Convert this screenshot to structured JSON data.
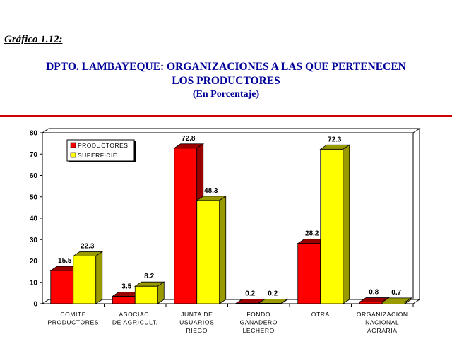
{
  "figure_label": "Gráfico  1.12:",
  "title_line1": "DPTO. LAMBAYEQUE: ORGANIZACIONES A LAS QUE PERTENECEN",
  "title_line2": "LOS PRODUCTORES",
  "title_line3": "(En Porcentaje)",
  "colors": {
    "productores": "#ff0000",
    "productores_dark": "#990000",
    "superficie": "#ffff00",
    "superficie_dark": "#999900",
    "title": "#000099",
    "rule": "#cc0000"
  },
  "chart_data": {
    "type": "bar",
    "categories": [
      [
        "COMITE",
        "PRODUCTORES"
      ],
      [
        "ASOCIAC.",
        "DE AGRICULT."
      ],
      [
        "JUNTA DE",
        "USUARIOS",
        "RIEGO"
      ],
      [
        "FONDO",
        "GANADERO",
        "LECHERO"
      ],
      [
        "OTRA"
      ],
      [
        "ORGANIZACION",
        "NACIONAL",
        "AGRARIA"
      ]
    ],
    "series": [
      {
        "name": "PRODUCTORES",
        "values": [
          15.5,
          3.5,
          72.8,
          0.2,
          28.2,
          0.8
        ],
        "labels": [
          "15.5",
          "3.5",
          "72.8",
          "0.2",
          "28.2",
          "0.8"
        ]
      },
      {
        "name": "SUPERFICIE",
        "values": [
          22.3,
          8.2,
          48.3,
          0.2,
          72.3,
          0.7
        ],
        "labels": [
          "22.3",
          "8.2",
          "48.3",
          "0.2",
          "72.3",
          "0.7"
        ]
      }
    ],
    "ylim": [
      0,
      80
    ],
    "yticks": [
      0,
      10,
      20,
      30,
      40,
      50,
      60,
      70,
      80
    ],
    "legend_position": "top-left",
    "grid": false,
    "style": "3d"
  }
}
